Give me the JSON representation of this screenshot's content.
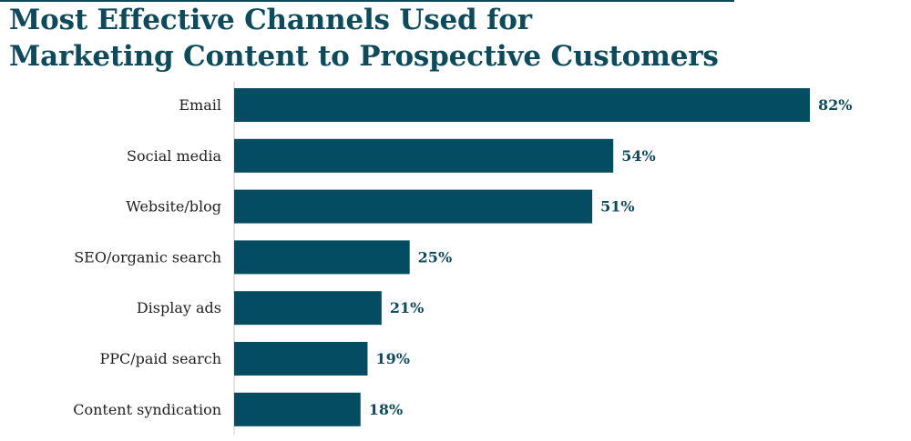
{
  "chart_data": {
    "type": "bar",
    "orientation": "horizontal",
    "title_lines": [
      "Most Effective Channels Used for",
      "Marketing Content to Prospective Customers"
    ],
    "categories": [
      "Email",
      "Social media",
      "Website/blog",
      "SEO/organic search",
      "Display ads",
      "PPC/paid search",
      "Content syndication"
    ],
    "values": [
      82,
      54,
      51,
      25,
      21,
      19,
      18
    ],
    "value_labels": [
      "82%",
      "54%",
      "51%",
      "25%",
      "21%",
      "19%",
      "18%"
    ],
    "xlim": [
      0,
      100
    ],
    "grid": false,
    "legend": "none",
    "bar_color": "#034c61",
    "title_color": "#0d4a5c"
  }
}
